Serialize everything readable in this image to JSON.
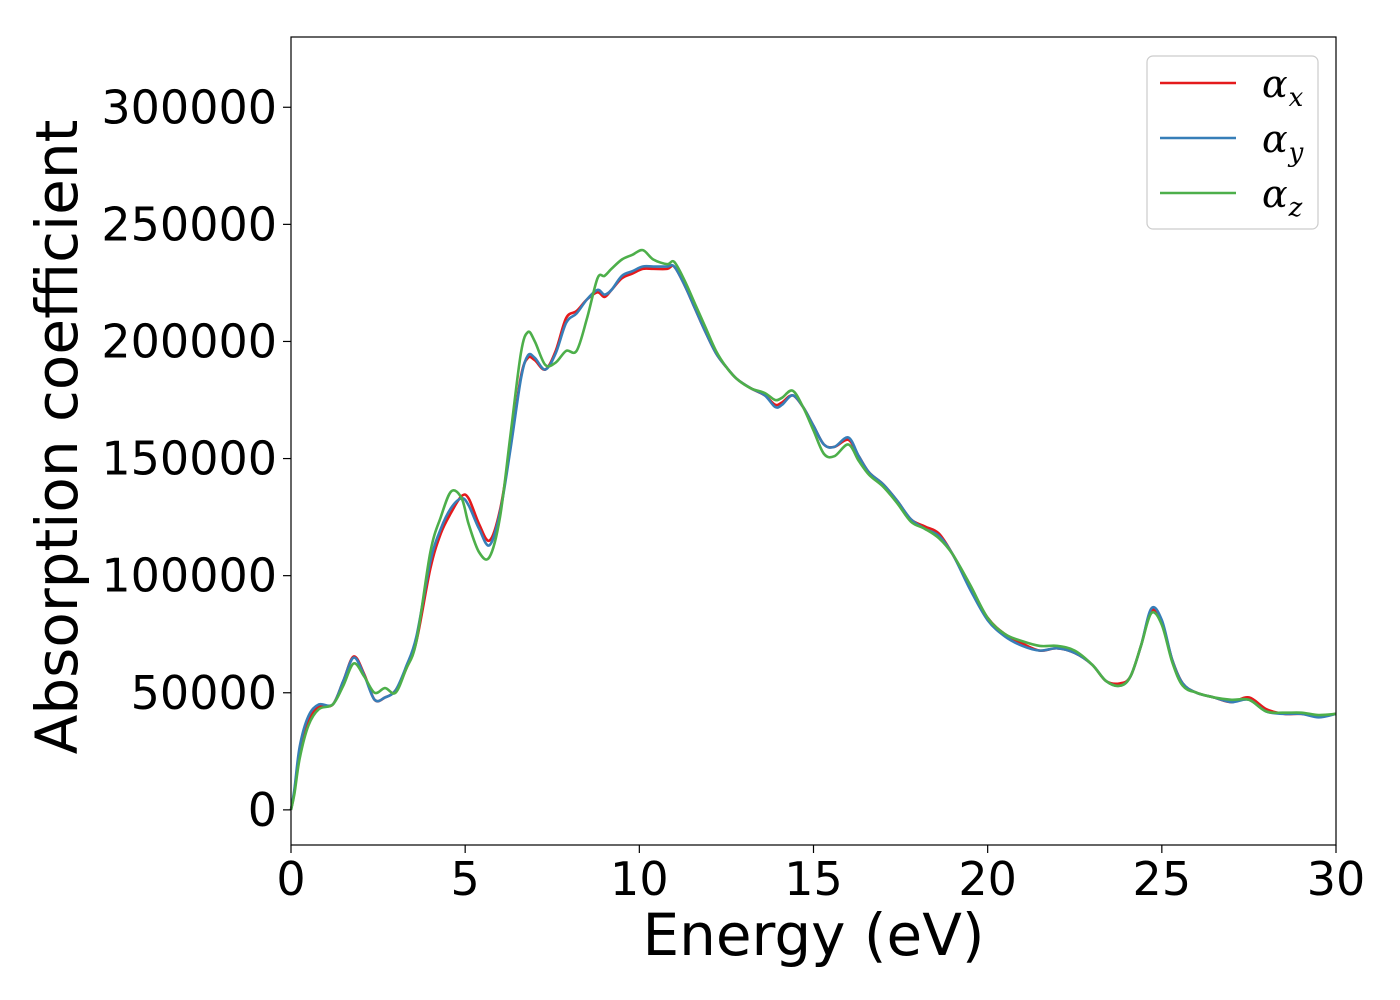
{
  "chart_data": {
    "type": "line",
    "xlabel": "Energy (eV)",
    "ylabel": "Absorption coefficient",
    "xlim": [
      0,
      30
    ],
    "ylim": [
      -15000,
      330000
    ],
    "xticks": [
      0,
      5,
      10,
      15,
      20,
      25,
      30
    ],
    "yticks": [
      0,
      50000,
      100000,
      150000,
      200000,
      250000,
      300000
    ],
    "grid": false,
    "legend_position": "top-right",
    "x": [
      0,
      0.1,
      0.25,
      0.5,
      0.8,
      1.2,
      1.5,
      1.8,
      2.1,
      2.4,
      2.7,
      3.0,
      3.3,
      3.6,
      4.0,
      4.3,
      4.6,
      4.9,
      5.1,
      5.4,
      5.7,
      6.0,
      6.3,
      6.6,
      6.8,
      7.0,
      7.3,
      7.6,
      7.9,
      8.2,
      8.5,
      8.8,
      9.0,
      9.2,
      9.5,
      9.8,
      10.1,
      10.4,
      10.8,
      11.0,
      11.3,
      11.6,
      11.9,
      12.2,
      12.5,
      12.8,
      13.2,
      13.6,
      13.9,
      14.1,
      14.4,
      14.7,
      15.0,
      15.3,
      15.6,
      16.0,
      16.3,
      16.6,
      17.0,
      17.4,
      17.8,
      18.2,
      18.6,
      19.0,
      19.5,
      20.0,
      20.5,
      21.0,
      21.5,
      22.0,
      22.5,
      23.0,
      23.4,
      23.8,
      24.1,
      24.4,
      24.7,
      25.0,
      25.3,
      25.6,
      26.0,
      26.5,
      27.0,
      27.5,
      28.0,
      28.5,
      29.0,
      29.5,
      30.0
    ],
    "series": [
      {
        "name": "α_x",
        "legend_main": "α",
        "legend_sub": "x",
        "color": "#e41a1c",
        "values": [
          0,
          8000,
          25000,
          38000,
          44000,
          45000,
          55000,
          65500,
          58000,
          47000,
          48000,
          51000,
          60000,
          72000,
          103000,
          118000,
          127000,
          134000,
          133000,
          122000,
          115000,
          128000,
          155000,
          185000,
          193000,
          192000,
          188000,
          196000,
          210000,
          213000,
          218000,
          221000,
          219000,
          222000,
          227000,
          229000,
          231000,
          231000,
          231000,
          232000,
          224000,
          214000,
          204000,
          195000,
          189000,
          184000,
          180000,
          177000,
          173000,
          174000,
          177000,
          172000,
          164000,
          156000,
          155000,
          158000,
          151000,
          144000,
          139000,
          132000,
          124000,
          121000,
          118000,
          109000,
          95000,
          82000,
          75000,
          71000,
          68000,
          69000,
          67000,
          62000,
          55000,
          54000,
          57000,
          70000,
          85000,
          80000,
          64000,
          54000,
          50000,
          48000,
          46000,
          48000,
          43000,
          41000,
          41000,
          40000,
          41000
        ]
      },
      {
        "name": "α_y",
        "legend_main": "α",
        "legend_sub": "y",
        "color": "#377eb8",
        "values": [
          0,
          9000,
          27000,
          40000,
          45000,
          45000,
          55000,
          65000,
          57500,
          47000,
          48000,
          51000,
          61000,
          74000,
          106000,
          120000,
          129000,
          133000,
          130000,
          120000,
          113000,
          127000,
          154000,
          184000,
          194000,
          193000,
          188000,
          195000,
          208000,
          212000,
          218000,
          222000,
          220000,
          222000,
          228000,
          230000,
          232000,
          232000,
          232000,
          232000,
          224000,
          214000,
          204000,
          195000,
          189000,
          184000,
          180000,
          177000,
          172000,
          173000,
          177000,
          172000,
          164000,
          156000,
          155000,
          159000,
          151000,
          144000,
          139000,
          132000,
          124000,
          120000,
          117000,
          109000,
          94000,
          81000,
          74000,
          70000,
          68000,
          69000,
          67000,
          62000,
          55000,
          53000,
          57000,
          70000,
          86000,
          81000,
          64000,
          54000,
          50000,
          48000,
          46000,
          47000,
          42000,
          41000,
          41000,
          39500,
          41000
        ]
      },
      {
        "name": "α_z",
        "legend_main": "α",
        "legend_sub": "z",
        "color": "#4daf4a",
        "values": [
          0,
          7000,
          22000,
          36000,
          43000,
          45000,
          53000,
          62500,
          57000,
          50000,
          52000,
          50000,
          60000,
          72000,
          110000,
          125000,
          136000,
          133000,
          122000,
          110000,
          108000,
          125000,
          160000,
          195000,
          204000,
          200000,
          190000,
          191000,
          196000,
          196000,
          210000,
          227000,
          228000,
          231000,
          235000,
          237000,
          239000,
          235000,
          233000,
          234000,
          226000,
          216000,
          206000,
          196000,
          189000,
          184000,
          180000,
          178000,
          175000,
          176000,
          179000,
          172000,
          162000,
          152000,
          151000,
          156000,
          149000,
          143000,
          138000,
          131000,
          123000,
          120000,
          116000,
          109000,
          96000,
          82000,
          75000,
          72000,
          70000,
          70000,
          68000,
          62000,
          55000,
          53000,
          57000,
          70000,
          84000,
          79000,
          63000,
          53000,
          50000,
          48000,
          47000,
          47000,
          42000,
          41500,
          41500,
          40500,
          41000
        ]
      }
    ]
  }
}
